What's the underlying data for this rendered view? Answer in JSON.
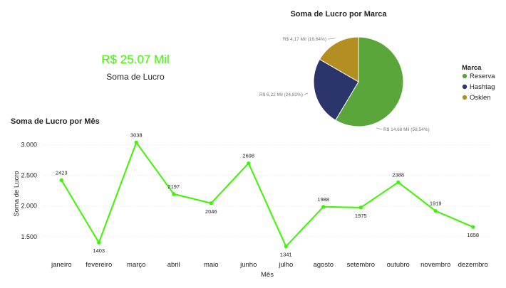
{
  "kpi": {
    "value": "R$ 25.07 Mil",
    "label": "Soma de Lucro"
  },
  "pie_chart": {
    "title": "Soma de Lucro por Marca",
    "legend_title": "Marca",
    "slices": [
      {
        "name": "Reserva",
        "value": 14.68,
        "percent": 58.54,
        "label": "R$ 14,68 Mil (58,54%)",
        "color": "#5aa63a"
      },
      {
        "name": "Hashtag",
        "value": 6.22,
        "percent": 24.82,
        "label": "R$ 6,22 Mil (24,82%)",
        "color": "#2b356b"
      },
      {
        "name": "Osklen",
        "value": 4.17,
        "percent": 16.64,
        "label": "R$ 4,17 Mil (16,64%)",
        "color": "#b38f22"
      }
    ]
  },
  "chart_data": {
    "type": "line",
    "title": "Soma de Lucro por Mês",
    "xlabel": "Mês",
    "ylabel": "Soma de Lucro",
    "categories": [
      "janeiro",
      "fevereiro",
      "março",
      "abril",
      "maio",
      "junho",
      "julho",
      "agosto",
      "setembro",
      "outubro",
      "novembro",
      "dezembro"
    ],
    "values": [
      2423,
      1403,
      3038,
      2197,
      2046,
      2698,
      1341,
      1988,
      1975,
      2388,
      1919,
      1658
    ],
    "yticks": [
      1500,
      2000,
      2500,
      3000
    ],
    "ytick_labels": [
      "1.500",
      "2.000",
      "2.500",
      "3.000"
    ],
    "ylim": [
      1300,
      3100
    ],
    "grid": true,
    "line_color": "#3cf500"
  }
}
